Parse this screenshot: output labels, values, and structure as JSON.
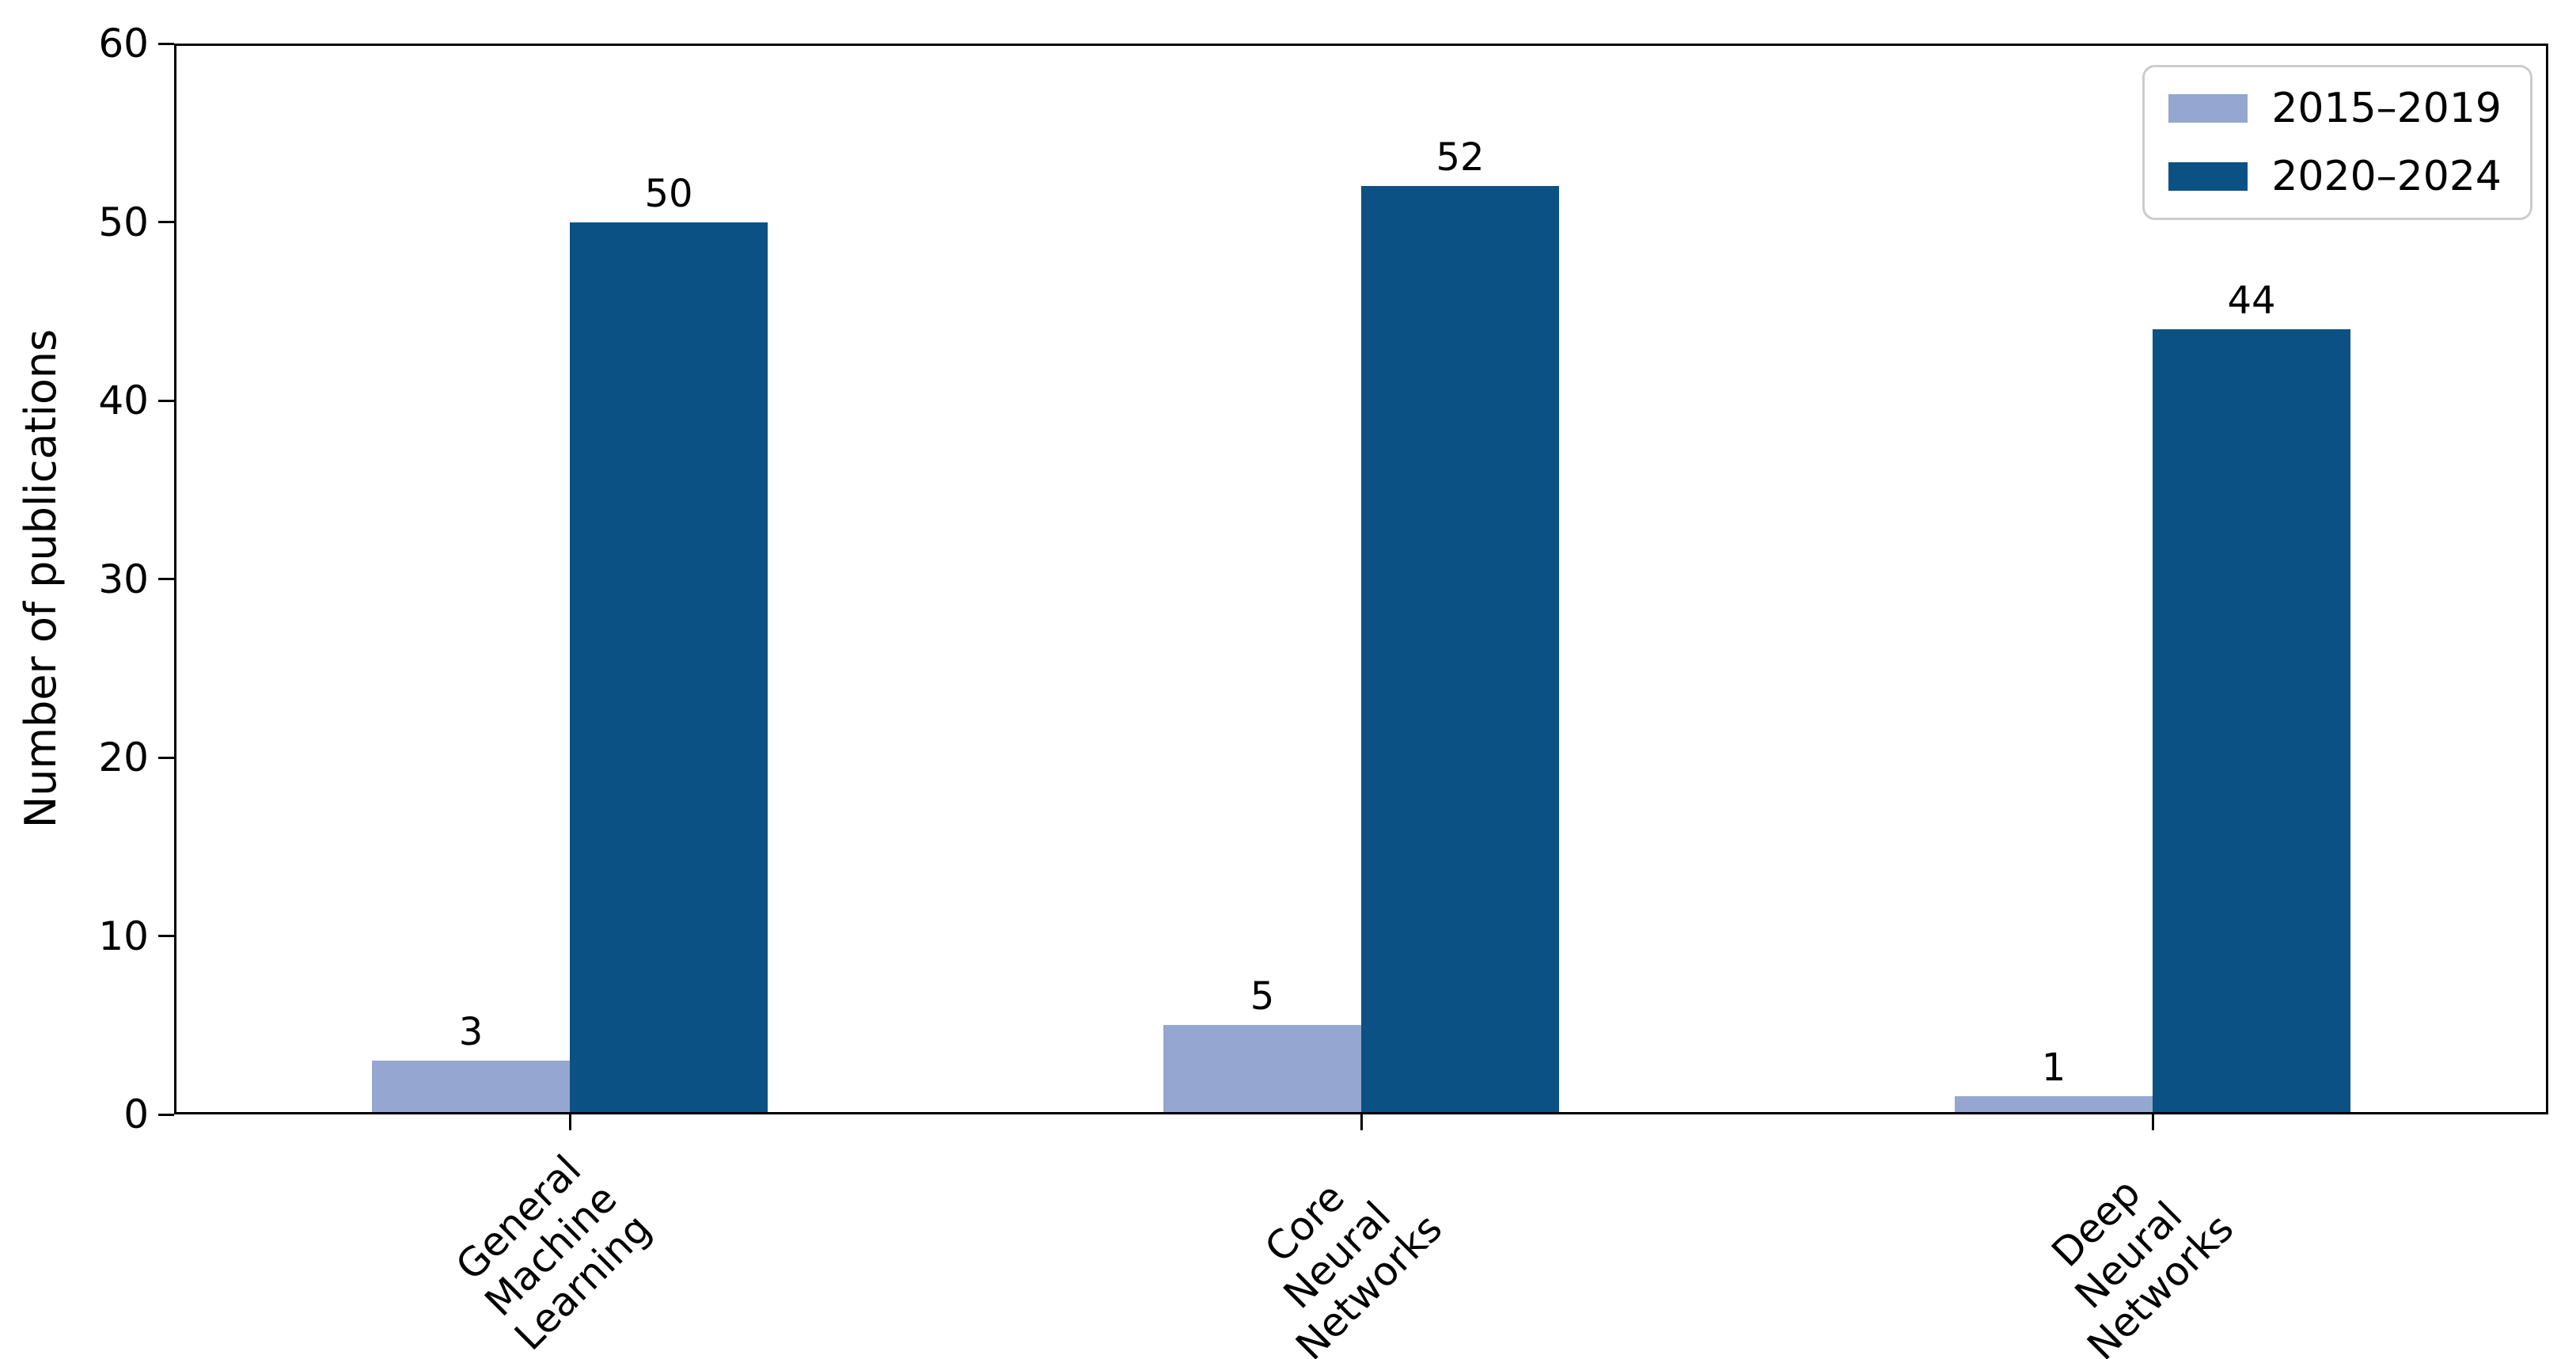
{
  "chart_data": {
    "type": "bar",
    "title": "",
    "xlabel": "",
    "ylabel": "Number of publications",
    "categories": [
      "General\nMachine\nLearning",
      "Core Neural\nNetworks",
      "Deep Neural\nNetworks"
    ],
    "series": [
      {
        "name": "2015–2019",
        "color": "#95a7d0",
        "values": [
          3,
          5,
          1
        ]
      },
      {
        "name": "2020–2024",
        "color": "#0b5183",
        "values": [
          50,
          52,
          44
        ]
      }
    ],
    "ylim": [
      0,
      60
    ],
    "yticks": [
      0,
      10,
      20,
      30,
      40,
      50,
      60
    ],
    "value_labels": [
      [
        "3",
        "5",
        "1"
      ],
      [
        "50",
        "52",
        "44"
      ]
    ],
    "legend_position": "upper right",
    "grid": false,
    "x_tick_rotation_deg": 45
  }
}
